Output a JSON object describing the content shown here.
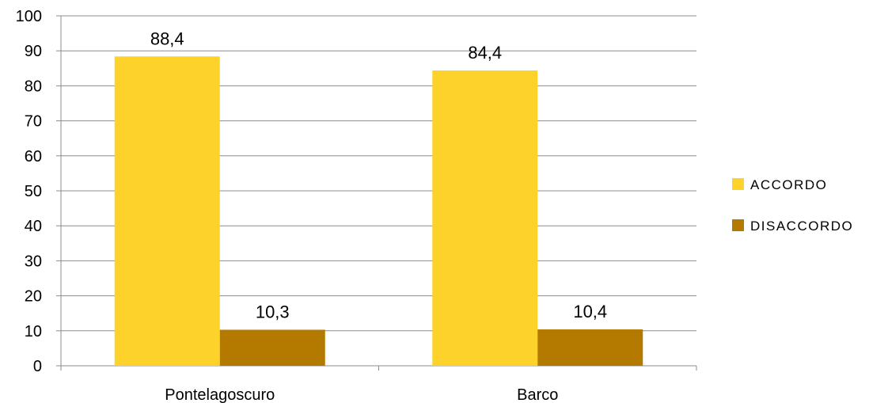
{
  "chart_data": {
    "type": "bar",
    "categories": [
      "Pontelagoscuro",
      "Barco"
    ],
    "series": [
      {
        "name": "ACCORDO",
        "values": [
          88.4,
          84.4
        ],
        "labels": [
          "88,4",
          "84,4"
        ],
        "color": "#FDD32B"
      },
      {
        "name": "DISACCORDO",
        "values": [
          10.3,
          10.4
        ],
        "labels": [
          "10,3",
          "10,4"
        ],
        "color": "#B47A00"
      }
    ],
    "ylim": [
      0,
      100
    ],
    "yticks": [
      0,
      10,
      20,
      30,
      40,
      50,
      60,
      70,
      80,
      90,
      100
    ],
    "grid": true,
    "legend": "right",
    "colors": {
      "grid": "#8C8C8C",
      "axis": "#8C8C8C"
    }
  }
}
